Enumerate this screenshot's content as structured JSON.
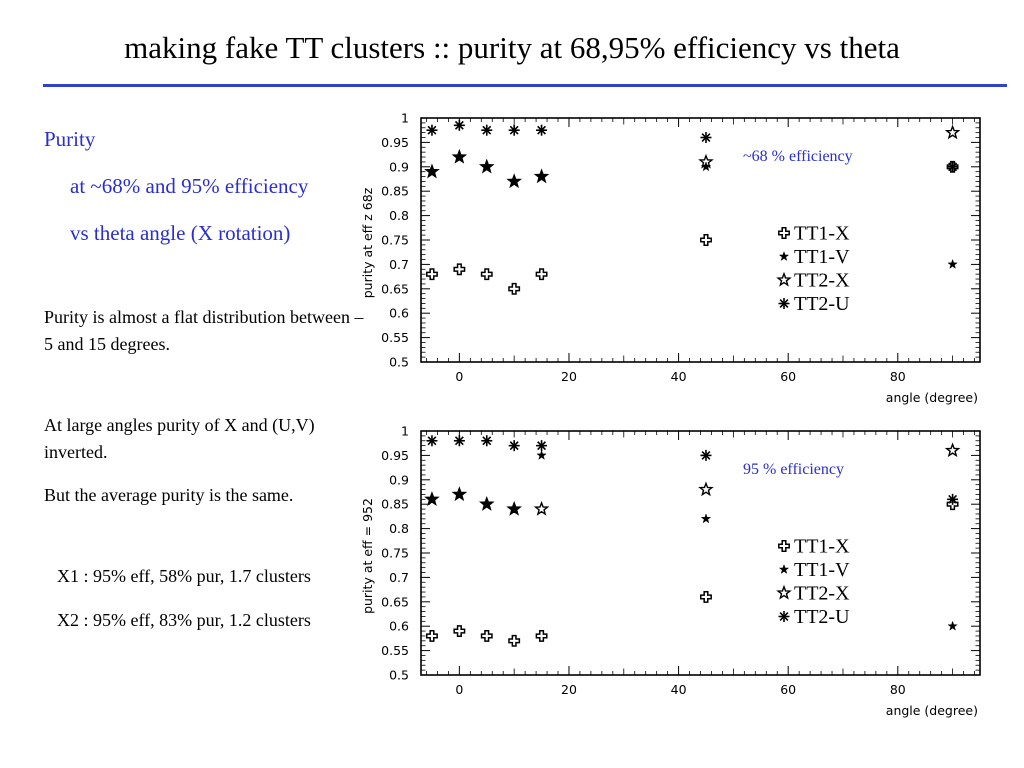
{
  "slide": {
    "title": "making fake TT clusters :: purity at 68,95% efficiency vs theta",
    "heading": "Purity",
    "sub1": "at ~68% and 95% efficiency",
    "sub2": "vs theta angle (X rotation)",
    "para1": "Purity is almost a flat distribution between –5 and 15 degrees.",
    "para2": "At large angles purity of X and (U,V) inverted.",
    "para3": "But the average purity is the same.",
    "note1": "X1 : 95% eff, 58% pur, 1.7 clusters",
    "note2": "X2 : 95% eff, 83% pur, 1.2 clusters",
    "accent_color": "#2a2ed0",
    "rule_color": "#3340c8"
  },
  "chart_data": [
    {
      "type": "scatter",
      "annotation": "~68 % efficiency",
      "xlabel": "angle (degree)",
      "ylabel": "purity at eff z 68z",
      "xlim": [
        -7,
        95
      ],
      "ylim": [
        0.5,
        1.0
      ],
      "xticks": [
        0,
        20,
        40,
        60,
        80
      ],
      "yticks": [
        0.5,
        0.55,
        0.6,
        0.65,
        0.7,
        0.75,
        0.8,
        0.85,
        0.9,
        0.95,
        1
      ],
      "ytick_labels": [
        "0.5",
        "0.55",
        "0.6",
        "0.65",
        "0.7",
        "0.75",
        "0.8",
        "0.85",
        "0.9",
        "0.95",
        "1"
      ],
      "legend": "right",
      "series": [
        {
          "name": "TT1-X",
          "marker": "cross",
          "x": [
            -5,
            0,
            5,
            10,
            15,
            45,
            90
          ],
          "y": [
            0.68,
            0.69,
            0.68,
            0.65,
            0.68,
            0.75,
            0.9
          ]
        },
        {
          "name": "TT1-V",
          "marker": "smallstar",
          "x": [
            -5,
            0,
            5,
            10,
            15,
            45,
            90
          ],
          "y": [
            0.89,
            0.92,
            0.9,
            0.87,
            0.88,
            0.9,
            0.7
          ]
        },
        {
          "name": "TT2-X",
          "marker": "openstar",
          "x": [
            -5,
            0,
            5,
            10,
            15,
            45,
            90
          ],
          "y": [
            0.89,
            0.92,
            0.9,
            0.87,
            0.88,
            0.91,
            0.97
          ]
        },
        {
          "name": "TT2-U",
          "marker": "asterisk",
          "x": [
            -5,
            0,
            5,
            10,
            15,
            45,
            90
          ],
          "y": [
            0.975,
            0.985,
            0.975,
            0.975,
            0.975,
            0.96,
            0.9
          ]
        }
      ]
    },
    {
      "type": "scatter",
      "annotation": "95 % efficiency",
      "xlabel": "angle (degree)",
      "ylabel": "purity at eff = 952",
      "xlim": [
        -7,
        95
      ],
      "ylim": [
        0.5,
        1.0
      ],
      "xticks": [
        0,
        20,
        40,
        60,
        80
      ],
      "yticks": [
        0.5,
        0.55,
        0.6,
        0.65,
        0.7,
        0.75,
        0.8,
        0.85,
        0.9,
        0.95,
        1
      ],
      "ytick_labels": [
        "0.5",
        "0.55",
        "0.6",
        "0.65",
        "0.7",
        "0.75",
        "0.8",
        "0.85",
        "0.9",
        "0.95",
        "1"
      ],
      "legend": "right",
      "series": [
        {
          "name": "TT1-X",
          "marker": "cross",
          "x": [
            -5,
            0,
            5,
            10,
            15,
            45,
            90
          ],
          "y": [
            0.58,
            0.59,
            0.58,
            0.57,
            0.58,
            0.66,
            0.85
          ]
        },
        {
          "name": "TT1-V",
          "marker": "smallstar",
          "x": [
            -5,
            0,
            5,
            10,
            15,
            45,
            90
          ],
          "y": [
            0.86,
            0.87,
            0.85,
            0.84,
            0.95,
            0.82,
            0.6
          ]
        },
        {
          "name": "TT2-X",
          "marker": "openstar",
          "x": [
            -5,
            0,
            5,
            10,
            15,
            45,
            90
          ],
          "y": [
            0.86,
            0.87,
            0.85,
            0.84,
            0.84,
            0.88,
            0.96
          ]
        },
        {
          "name": "TT2-U",
          "marker": "asterisk",
          "x": [
            -5,
            0,
            5,
            10,
            15,
            45,
            90
          ],
          "y": [
            0.98,
            0.98,
            0.98,
            0.97,
            0.97,
            0.95,
            0.86
          ]
        }
      ]
    }
  ]
}
